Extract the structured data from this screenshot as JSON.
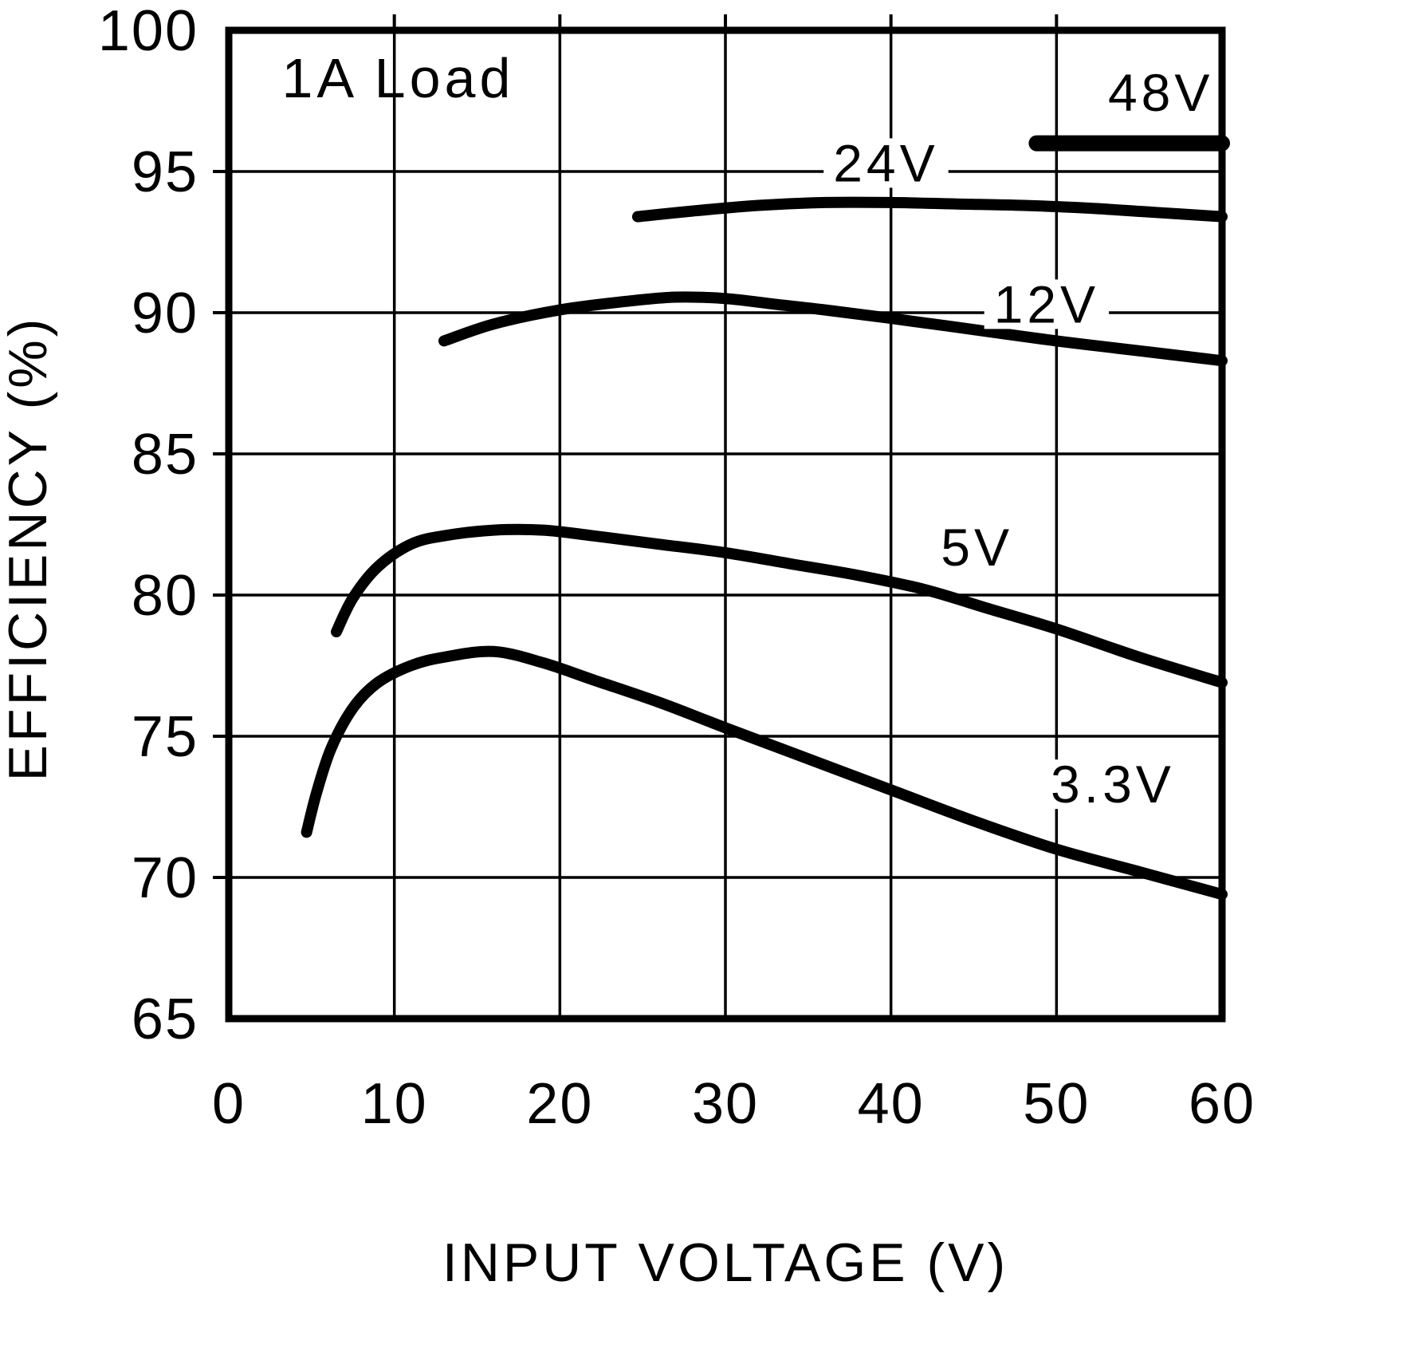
{
  "page": {
    "background": "#ffffff"
  },
  "chart_data": {
    "type": "line",
    "title": "",
    "annotation": "1A Load",
    "annotation_pos": [
      3.2,
      98.3
    ],
    "xlabel": "INPUT VOLTAGE (V)",
    "ylabel": "EFFICIENCY (%)",
    "xlim": [
      0,
      60
    ],
    "ylim": [
      65,
      100
    ],
    "xticks": [
      0,
      10,
      20,
      30,
      40,
      50,
      60
    ],
    "yticks": [
      65,
      70,
      75,
      80,
      85,
      90,
      95,
      100
    ],
    "grid": true,
    "stroke_color": "#000000",
    "legend_position": "inline-labels",
    "series": [
      {
        "name": "48V",
        "label_pos": [
          56.3,
          97.8
        ],
        "points": [
          [
            48.8,
            96.0
          ],
          [
            60,
            96.0
          ]
        ]
      },
      {
        "name": "24V",
        "label_pos": [
          39.7,
          95.3
        ],
        "points": [
          [
            24.7,
            93.4
          ],
          [
            28,
            93.6
          ],
          [
            32,
            93.8
          ],
          [
            36,
            93.9
          ],
          [
            40,
            93.9
          ],
          [
            44,
            93.85
          ],
          [
            48,
            93.8
          ],
          [
            52,
            93.7
          ],
          [
            56,
            93.55
          ],
          [
            60,
            93.4
          ]
        ]
      },
      {
        "name": "12V",
        "label_pos": [
          49.4,
          90.3
        ],
        "points": [
          [
            13,
            89.0
          ],
          [
            16,
            89.6
          ],
          [
            20,
            90.1
          ],
          [
            24,
            90.4
          ],
          [
            27,
            90.55
          ],
          [
            30,
            90.5
          ],
          [
            33,
            90.3
          ],
          [
            36,
            90.1
          ],
          [
            40,
            89.8
          ],
          [
            45,
            89.4
          ],
          [
            50,
            89.0
          ],
          [
            55,
            88.65
          ],
          [
            60,
            88.3
          ]
        ]
      },
      {
        "name": "5V",
        "label_pos": [
          45.2,
          81.7
        ],
        "points": [
          [
            6.5,
            78.7
          ],
          [
            7.5,
            79.9
          ],
          [
            9,
            81.0
          ],
          [
            11,
            81.8
          ],
          [
            13,
            82.1
          ],
          [
            16,
            82.3
          ],
          [
            19,
            82.3
          ],
          [
            22,
            82.1
          ],
          [
            26,
            81.8
          ],
          [
            30,
            81.5
          ],
          [
            34,
            81.1
          ],
          [
            38,
            80.7
          ],
          [
            42,
            80.2
          ],
          [
            46,
            79.5
          ],
          [
            50,
            78.8
          ],
          [
            55,
            77.8
          ],
          [
            60,
            76.9
          ]
        ]
      },
      {
        "name": "3.3V",
        "label_pos": [
          53.4,
          73.3
        ],
        "points": [
          [
            4.7,
            71.6
          ],
          [
            5.3,
            73.0
          ],
          [
            6.2,
            74.6
          ],
          [
            7.5,
            76.0
          ],
          [
            9,
            76.9
          ],
          [
            11,
            77.5
          ],
          [
            13,
            77.8
          ],
          [
            16,
            78.0
          ],
          [
            19,
            77.6
          ],
          [
            22,
            77.0
          ],
          [
            26,
            76.2
          ],
          [
            30,
            75.3
          ],
          [
            35,
            74.2
          ],
          [
            40,
            73.1
          ],
          [
            45,
            72.0
          ],
          [
            50,
            71.0
          ],
          [
            55,
            70.2
          ],
          [
            60,
            69.4
          ]
        ]
      }
    ]
  }
}
